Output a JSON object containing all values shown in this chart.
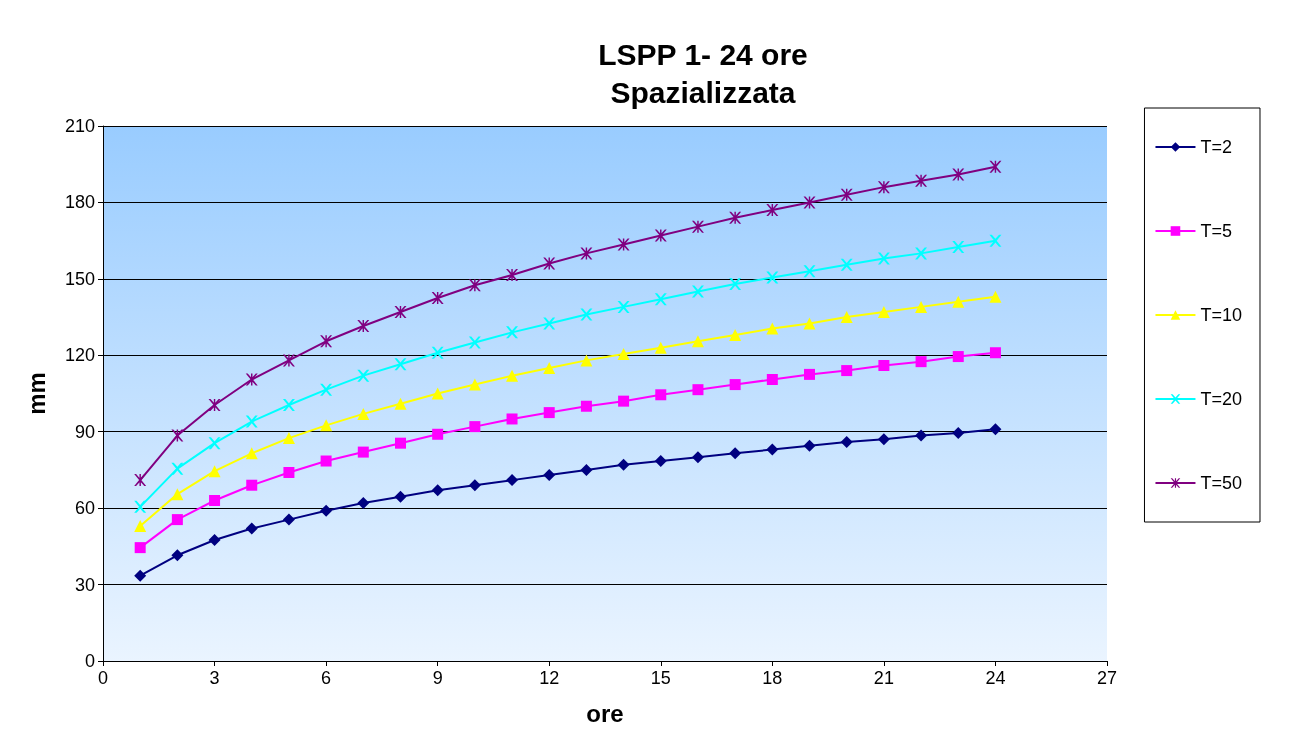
{
  "chart_data": {
    "type": "line",
    "title": "LSPP 1- 24 ore\nSpazializzata",
    "xlabel": "ore",
    "ylabel": "mm",
    "x": [
      1,
      2,
      3,
      4,
      5,
      6,
      7,
      8,
      9,
      10,
      11,
      12,
      13,
      14,
      15,
      16,
      17,
      18,
      19,
      20,
      21,
      22,
      23,
      24
    ],
    "xlim": [
      0,
      27
    ],
    "xticks": [
      0,
      3,
      6,
      9,
      12,
      15,
      18,
      21,
      24,
      27
    ],
    "ylim": [
      0,
      210
    ],
    "yticks": [
      0,
      30,
      60,
      90,
      120,
      150,
      180,
      210
    ],
    "grid": "y",
    "legend": "right",
    "series": [
      {
        "name": "T=2",
        "color": "#000080",
        "marker": "diamond",
        "values": [
          33.5,
          41.5,
          47.5,
          52,
          55.5,
          59,
          62,
          64.5,
          67,
          69,
          71,
          73,
          75,
          77,
          78.5,
          80,
          81.5,
          83,
          84.5,
          86,
          87,
          88.5,
          89.5,
          91
        ]
      },
      {
        "name": "T=5",
        "color": "#ff00ff",
        "marker": "square",
        "values": [
          44.5,
          55.5,
          63,
          69,
          74,
          78.5,
          82,
          85.5,
          89,
          92,
          95,
          97.5,
          100,
          102,
          104.5,
          106.5,
          108.5,
          110.5,
          112.5,
          114,
          116,
          117.5,
          119.5,
          121
        ]
      },
      {
        "name": "T=10",
        "color": "#ffff00",
        "marker": "triangle",
        "values": [
          53,
          65.5,
          74.5,
          81.5,
          87.5,
          92.5,
          97,
          101,
          105,
          108.5,
          112,
          115,
          118,
          120.5,
          123,
          125.5,
          128,
          130.5,
          132.5,
          135,
          137,
          139,
          141,
          143
        ]
      },
      {
        "name": "T=20",
        "color": "#00ffff",
        "marker": "cross",
        "values": [
          60.5,
          75.5,
          85.5,
          94,
          100.5,
          106.5,
          112,
          116.5,
          121,
          125,
          129,
          132.5,
          136,
          139,
          142,
          145,
          148,
          150.5,
          153,
          155.5,
          158,
          160,
          162.5,
          165
        ]
      },
      {
        "name": "T=50",
        "color": "#800080",
        "marker": "star",
        "values": [
          71,
          88.5,
          100.5,
          110.5,
          118,
          125.5,
          131.5,
          137,
          142.5,
          147.5,
          151.5,
          156,
          160,
          163.5,
          167,
          170.5,
          174,
          177,
          180,
          183,
          186,
          188.5,
          191,
          194
        ]
      }
    ]
  }
}
